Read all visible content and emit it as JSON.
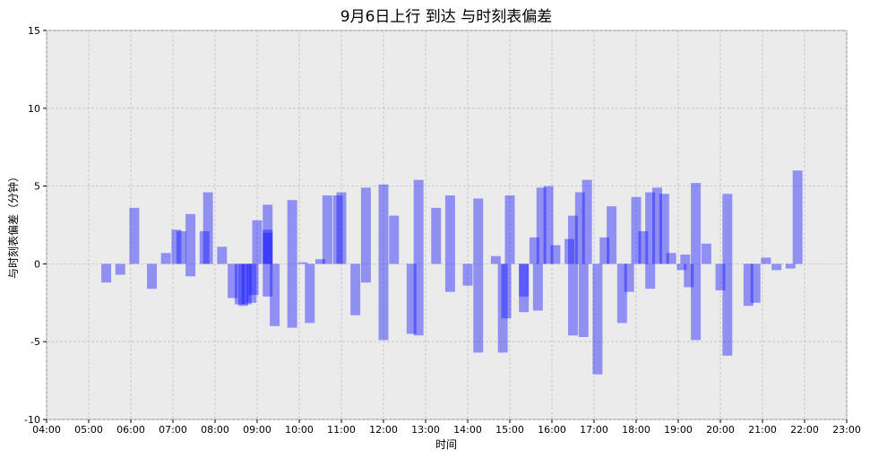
{
  "chart_data": {
    "type": "bar",
    "title": "9月6日上行 到达 与时刻表偏差",
    "xlabel": "时间",
    "ylabel": "与时刻表偏差（分钟）",
    "xlim": [
      "04:00",
      "23:00"
    ],
    "ylim": [
      -10,
      15
    ],
    "x_ticks": [
      "04:00",
      "05:00",
      "06:00",
      "07:00",
      "08:00",
      "09:00",
      "10:00",
      "11:00",
      "12:00",
      "13:00",
      "14:00",
      "15:00",
      "16:00",
      "17:00",
      "18:00",
      "19:00",
      "20:00",
      "21:00",
      "22:00",
      "23:00"
    ],
    "y_ticks": [
      -10,
      -5,
      0,
      5,
      10,
      15
    ],
    "grid": true,
    "bar_width_minutes": 14,
    "bar_color": "#1414ff",
    "bars": [
      {
        "x": "05:25",
        "y": -1.2
      },
      {
        "x": "05:45",
        "y": -0.7
      },
      {
        "x": "06:05",
        "y": 3.6
      },
      {
        "x": "06:30",
        "y": -1.6
      },
      {
        "x": "06:50",
        "y": 0.7
      },
      {
        "x": "07:05",
        "y": 2.2
      },
      {
        "x": "07:12",
        "y": 2.1
      },
      {
        "x": "07:25",
        "y": -0.8
      },
      {
        "x": "07:25",
        "y": 3.2
      },
      {
        "x": "07:45",
        "y": 2.1
      },
      {
        "x": "07:50",
        "y": 4.6
      },
      {
        "x": "08:10",
        "y": 1.1
      },
      {
        "x": "08:25",
        "y": -2.2
      },
      {
        "x": "08:35",
        "y": -2.6
      },
      {
        "x": "08:40",
        "y": -2.7
      },
      {
        "x": "08:45",
        "y": -2.6
      },
      {
        "x": "08:52",
        "y": -2.5
      },
      {
        "x": "08:55",
        "y": -2.0
      },
      {
        "x": "09:00",
        "y": 2.8
      },
      {
        "x": "09:15",
        "y": 2.2
      },
      {
        "x": "09:15",
        "y": 2.0
      },
      {
        "x": "09:15",
        "y": 3.8
      },
      {
        "x": "09:15",
        "y": -2.1
      },
      {
        "x": "09:25",
        "y": -4.0
      },
      {
        "x": "09:50",
        "y": -4.1
      },
      {
        "x": "09:50",
        "y": 4.1
      },
      {
        "x": "10:05",
        "y": 0.1
      },
      {
        "x": "10:15",
        "y": -3.8
      },
      {
        "x": "10:30",
        "y": 0.3
      },
      {
        "x": "10:40",
        "y": 4.4
      },
      {
        "x": "10:55",
        "y": 4.4
      },
      {
        "x": "11:00",
        "y": 4.6
      },
      {
        "x": "11:20",
        "y": -3.3
      },
      {
        "x": "11:35",
        "y": -1.2
      },
      {
        "x": "11:35",
        "y": 4.9
      },
      {
        "x": "12:00",
        "y": 5.1
      },
      {
        "x": "12:00",
        "y": -4.9
      },
      {
        "x": "12:15",
        "y": 3.1
      },
      {
        "x": "12:40",
        "y": -4.5
      },
      {
        "x": "12:50",
        "y": -4.6
      },
      {
        "x": "12:50",
        "y": 5.4
      },
      {
        "x": "13:15",
        "y": 3.6
      },
      {
        "x": "13:35",
        "y": -1.8
      },
      {
        "x": "13:35",
        "y": 4.4
      },
      {
        "x": "14:00",
        "y": -1.4
      },
      {
        "x": "14:15",
        "y": -5.7
      },
      {
        "x": "14:15",
        "y": 4.2
      },
      {
        "x": "14:40",
        "y": 0.5
      },
      {
        "x": "14:50",
        "y": -5.7
      },
      {
        "x": "14:55",
        "y": -3.5
      },
      {
        "x": "15:00",
        "y": 4.4
      },
      {
        "x": "15:20",
        "y": -3.1
      },
      {
        "x": "15:20",
        "y": -2.1
      },
      {
        "x": "15:35",
        "y": 1.7
      },
      {
        "x": "15:40",
        "y": -3.0
      },
      {
        "x": "15:45",
        "y": 4.9
      },
      {
        "x": "15:55",
        "y": 5.0
      },
      {
        "x": "16:05",
        "y": 1.2
      },
      {
        "x": "16:25",
        "y": 1.6
      },
      {
        "x": "16:30",
        "y": -4.6
      },
      {
        "x": "16:30",
        "y": 3.1
      },
      {
        "x": "16:40",
        "y": 4.6
      },
      {
        "x": "16:45",
        "y": -4.7
      },
      {
        "x": "16:50",
        "y": 5.4
      },
      {
        "x": "17:05",
        "y": -7.1
      },
      {
        "x": "17:15",
        "y": 1.7
      },
      {
        "x": "17:25",
        "y": 3.7
      },
      {
        "x": "17:40",
        "y": -3.8
      },
      {
        "x": "17:50",
        "y": -1.8
      },
      {
        "x": "18:00",
        "y": 4.3
      },
      {
        "x": "18:10",
        "y": 2.1
      },
      {
        "x": "18:20",
        "y": 4.6
      },
      {
        "x": "18:20",
        "y": -1.6
      },
      {
        "x": "18:30",
        "y": 4.9
      },
      {
        "x": "18:40",
        "y": 4.5
      },
      {
        "x": "18:50",
        "y": 0.7
      },
      {
        "x": "19:05",
        "y": -0.4
      },
      {
        "x": "19:10",
        "y": 0.6
      },
      {
        "x": "19:15",
        "y": -1.5
      },
      {
        "x": "19:25",
        "y": 5.2
      },
      {
        "x": "19:25",
        "y": -4.9
      },
      {
        "x": "19:40",
        "y": 1.3
      },
      {
        "x": "20:00",
        "y": -1.7
      },
      {
        "x": "20:10",
        "y": 4.5
      },
      {
        "x": "20:10",
        "y": -5.9
      },
      {
        "x": "20:40",
        "y": -2.7
      },
      {
        "x": "20:50",
        "y": -2.5
      },
      {
        "x": "21:05",
        "y": 0.4
      },
      {
        "x": "21:20",
        "y": -0.4
      },
      {
        "x": "21:40",
        "y": -0.3
      },
      {
        "x": "21:50",
        "y": 6.0
      }
    ]
  }
}
